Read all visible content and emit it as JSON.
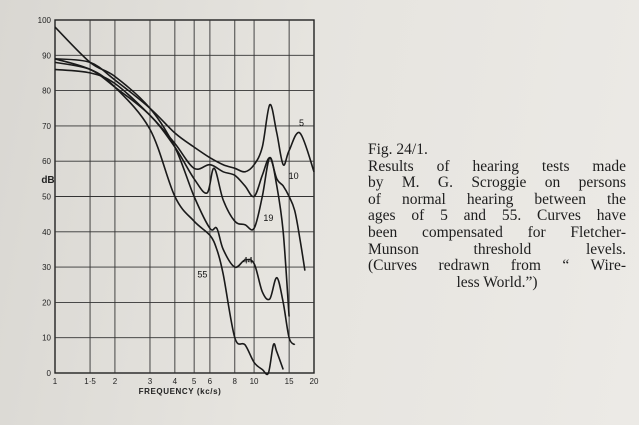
{
  "figure": {
    "number": "Fig. 24/1.",
    "caption_lines": [
      "Results of hearing tests made",
      "by M. G. Scroggie on persons",
      "of normal hearing between the",
      "ages of 5 and 55. Curves have",
      "been compensated for Fletcher-",
      "Munson      threshold      levels.",
      "(Curves redrawn from “ Wire-",
      "less World.”)"
    ]
  },
  "chart_data": {
    "type": "line",
    "xlabel": "FREQUENCY (kc/s)",
    "ylabel": "dB",
    "xscale": "log",
    "xlim": [
      1,
      20
    ],
    "ylim": [
      0,
      100
    ],
    "grid": true,
    "x_ticks": [
      1,
      1.5,
      2,
      3,
      4,
      5,
      6,
      8,
      10,
      15,
      20
    ],
    "x_tick_labels": [
      "1",
      "1·5",
      "2",
      "3",
      "4",
      "5",
      "6",
      "8",
      "10",
      "15",
      "20"
    ],
    "y_ticks": [
      0,
      10,
      20,
      30,
      40,
      50,
      60,
      70,
      80,
      90,
      100
    ],
    "y_tick_labels": [
      "0",
      "10",
      "20",
      "30",
      "40",
      "50",
      "60",
      "70",
      "80",
      "90",
      "100"
    ],
    "series": [
      {
        "name": "5",
        "label_at": [
          17.3,
          70
        ],
        "x": [
          1,
          1.5,
          2,
          3,
          4,
          5,
          6,
          7,
          8,
          9,
          10,
          11,
          12,
          13,
          14,
          15,
          17,
          20
        ],
        "y": [
          89,
          88,
          83,
          75,
          68,
          64,
          61,
          59,
          58,
          57,
          59,
          64,
          76,
          68,
          59,
          63,
          68,
          57
        ]
      },
      {
        "name": "10",
        "label_at": [
          15.8,
          55
        ],
        "x": [
          1,
          1.5,
          2,
          3,
          4,
          5,
          6,
          7,
          8,
          9,
          10,
          11,
          12,
          13,
          14,
          15,
          16,
          17,
          18
        ],
        "y": [
          86,
          85,
          82,
          73,
          65,
          58,
          59,
          57,
          56,
          53,
          50,
          56,
          61,
          55,
          53,
          50,
          46,
          38,
          29
        ]
      },
      {
        "name": "19",
        "label_at": [
          11.8,
          43
        ],
        "x": [
          1,
          1.5,
          2,
          3,
          4,
          5,
          5.8,
          6.3,
          7,
          8,
          9,
          10,
          11,
          12,
          13,
          14,
          15
        ],
        "y": [
          89,
          86,
          81,
          73,
          64,
          55,
          51,
          58,
          49,
          43,
          42,
          41,
          50,
          61,
          53,
          40,
          16
        ]
      },
      {
        "name": "44",
        "label_at": [
          9.3,
          31
        ],
        "x": [
          1,
          1.5,
          2,
          3,
          4,
          5,
          6,
          6.5,
          7,
          8,
          9,
          10,
          11,
          12,
          13,
          14,
          15,
          16
        ],
        "y": [
          98,
          88,
          84,
          75,
          64,
          50,
          41,
          41,
          35,
          30,
          32,
          31,
          23,
          21,
          27,
          20,
          10,
          8
        ]
      },
      {
        "name": "55",
        "label_at": [
          5.5,
          27
        ],
        "x": [
          1,
          1.5,
          2,
          3,
          4,
          5,
          6,
          6.5,
          7,
          8,
          9,
          10,
          11,
          11.8,
          12.5,
          13,
          14
        ],
        "y": [
          88,
          86,
          81,
          69,
          50,
          43,
          39,
          35,
          28,
          10,
          8,
          3,
          1,
          0,
          8,
          6,
          1
        ]
      }
    ]
  }
}
